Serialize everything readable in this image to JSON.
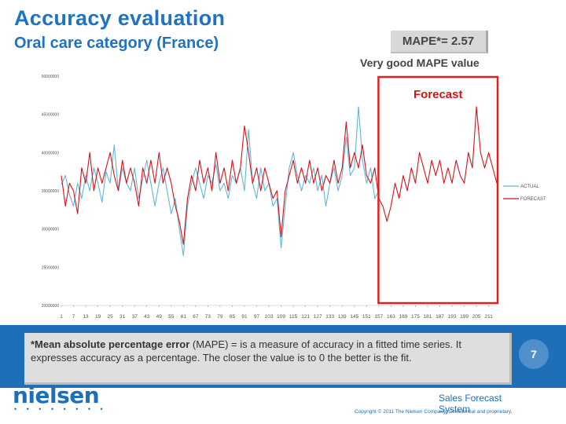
{
  "slide": {
    "title": "Accuracy evaluation",
    "subtitle": "Oral care category (France)",
    "mape_label": "MAPE*= 2.57",
    "mape_note": "Very good MAPE value",
    "forecast_label": "Forecast",
    "definition_bold": "*Mean absolute percentage error",
    "definition_text": " (MAPE) = is a measure of accuracy in a fitted time series. It expresses accuracy as a percentage. The closer the value is to 0 the better is the fit.",
    "page_number": "7",
    "logo_text": "nielsen",
    "logo_dots": "• • • • • • • •",
    "footer_system": "Sales Forecast System",
    "copyright": "Copyright © 2011 The Nielsen Company. Confidential and proprietary."
  },
  "colors": {
    "title": "#1f73c0",
    "actual": "#5fb8d6",
    "forecast": "#d3141a",
    "highlight": "#e02020",
    "band": "#1e6fb7"
  },
  "chart_data": {
    "type": "line",
    "x_start": 1,
    "x_end": 215,
    "x_ticks": [
      1,
      7,
      13,
      19,
      25,
      31,
      37,
      43,
      49,
      55,
      61,
      67,
      73,
      79,
      85,
      91,
      97,
      103,
      109,
      115,
      121,
      127,
      133,
      139,
      145,
      151,
      157,
      163,
      169,
      175,
      181,
      187,
      193,
      199,
      205,
      211
    ],
    "x_tick_labels": [
      "1",
      "7",
      "13",
      "19",
      "25",
      "31",
      "37",
      "43",
      "49",
      "55",
      "61",
      "67",
      "73",
      "79",
      "85",
      "91",
      "97",
      "103",
      "109",
      "115",
      "121",
      "127",
      "133",
      "139",
      "145",
      "151",
      "157",
      "163",
      "169",
      "175",
      "181",
      "187",
      "193",
      "199",
      "205",
      "211"
    ],
    "y_ticks": [
      20000000,
      25000000,
      30000000,
      35000000,
      40000000,
      45000000,
      50000000
    ],
    "y_tick_labels": [
      "20000000",
      "25000000",
      "30000000",
      "35000000",
      "40000000",
      "45000000",
      "50000000"
    ],
    "ylim": [
      20000000,
      50000000
    ],
    "forecast_start": 158,
    "legend_position": "right",
    "series": [
      {
        "name": "ACTUAL",
        "color": "#5fb8d6",
        "x_range": [
          1,
          157
        ],
        "waypoints": [
          [
            1,
            35.8
          ],
          [
            3,
            37
          ],
          [
            5,
            34.5
          ],
          [
            7,
            33
          ],
          [
            9,
            36
          ],
          [
            11,
            34
          ],
          [
            13,
            37
          ],
          [
            15,
            35
          ],
          [
            17,
            38
          ],
          [
            19,
            36
          ],
          [
            21,
            33.5
          ],
          [
            23,
            37.5
          ],
          [
            25,
            36
          ],
          [
            27,
            41
          ],
          [
            29,
            35
          ],
          [
            31,
            38
          ],
          [
            33,
            36
          ],
          [
            35,
            35
          ],
          [
            37,
            38
          ],
          [
            39,
            34
          ],
          [
            41,
            36.5
          ],
          [
            43,
            39
          ],
          [
            45,
            36
          ],
          [
            47,
            33
          ],
          [
            49,
            36
          ],
          [
            51,
            38
          ],
          [
            53,
            35
          ],
          [
            55,
            32
          ],
          [
            57,
            34
          ],
          [
            59,
            30
          ],
          [
            61,
            26.5
          ],
          [
            63,
            33
          ],
          [
            65,
            36
          ],
          [
            67,
            38
          ],
          [
            69,
            36
          ],
          [
            71,
            34
          ],
          [
            73,
            37
          ],
          [
            75,
            36
          ],
          [
            77,
            38.5
          ],
          [
            79,
            35
          ],
          [
            81,
            36
          ],
          [
            83,
            34
          ],
          [
            85,
            37
          ],
          [
            87,
            36
          ],
          [
            89,
            38
          ],
          [
            91,
            35
          ],
          [
            93,
            43
          ],
          [
            95,
            36
          ],
          [
            97,
            34
          ],
          [
            99,
            38
          ],
          [
            101,
            35
          ],
          [
            103,
            36
          ],
          [
            105,
            33
          ],
          [
            107,
            34
          ],
          [
            109,
            27.5
          ],
          [
            111,
            33
          ],
          [
            113,
            38
          ],
          [
            115,
            40
          ],
          [
            117,
            37
          ],
          [
            119,
            35
          ],
          [
            121,
            37
          ],
          [
            123,
            36
          ],
          [
            125,
            38
          ],
          [
            127,
            35
          ],
          [
            129,
            37
          ],
          [
            131,
            33
          ],
          [
            133,
            36
          ],
          [
            135,
            38
          ],
          [
            137,
            35
          ],
          [
            139,
            37
          ],
          [
            141,
            42
          ],
          [
            143,
            37
          ],
          [
            145,
            38
          ],
          [
            147,
            46
          ],
          [
            149,
            39
          ],
          [
            151,
            36
          ],
          [
            153,
            38
          ],
          [
            155,
            34
          ],
          [
            157,
            35
          ]
        ]
      },
      {
        "name": "FORECAST",
        "color": "#d3141a",
        "x_range": [
          1,
          215
        ],
        "waypoints": [
          [
            1,
            37
          ],
          [
            3,
            33
          ],
          [
            5,
            36
          ],
          [
            7,
            35
          ],
          [
            9,
            32
          ],
          [
            11,
            38
          ],
          [
            13,
            36
          ],
          [
            15,
            40
          ],
          [
            17,
            35
          ],
          [
            19,
            38
          ],
          [
            21,
            36
          ],
          [
            23,
            38
          ],
          [
            25,
            40
          ],
          [
            27,
            37
          ],
          [
            29,
            35
          ],
          [
            31,
            39
          ],
          [
            33,
            36
          ],
          [
            35,
            38
          ],
          [
            37,
            36
          ],
          [
            39,
            33
          ],
          [
            41,
            38
          ],
          [
            43,
            36
          ],
          [
            45,
            39
          ],
          [
            47,
            36
          ],
          [
            49,
            40
          ],
          [
            51,
            36
          ],
          [
            53,
            38
          ],
          [
            55,
            36
          ],
          [
            57,
            33
          ],
          [
            59,
            31
          ],
          [
            61,
            28
          ],
          [
            63,
            34
          ],
          [
            65,
            37
          ],
          [
            67,
            35
          ],
          [
            69,
            39
          ],
          [
            71,
            36
          ],
          [
            73,
            38
          ],
          [
            75,
            35
          ],
          [
            77,
            40
          ],
          [
            79,
            36
          ],
          [
            81,
            38
          ],
          [
            83,
            35
          ],
          [
            85,
            39
          ],
          [
            87,
            36
          ],
          [
            89,
            38
          ],
          [
            91,
            43.5
          ],
          [
            93,
            40
          ],
          [
            95,
            36
          ],
          [
            97,
            38
          ],
          [
            99,
            35
          ],
          [
            101,
            38
          ],
          [
            103,
            36
          ],
          [
            105,
            34
          ],
          [
            107,
            35
          ],
          [
            109,
            29
          ],
          [
            111,
            35
          ],
          [
            113,
            37
          ],
          [
            115,
            39
          ],
          [
            117,
            36
          ],
          [
            119,
            38
          ],
          [
            121,
            36
          ],
          [
            123,
            39
          ],
          [
            125,
            36
          ],
          [
            127,
            38
          ],
          [
            129,
            35
          ],
          [
            131,
            37
          ],
          [
            133,
            36
          ],
          [
            135,
            39
          ],
          [
            137,
            36
          ],
          [
            139,
            38
          ],
          [
            141,
            44
          ],
          [
            143,
            38
          ],
          [
            145,
            40
          ],
          [
            147,
            38
          ],
          [
            149,
            41
          ],
          [
            151,
            37
          ],
          [
            153,
            36
          ],
          [
            155,
            38
          ],
          [
            157,
            34
          ],
          [
            159,
            33
          ],
          [
            161,
            31
          ],
          [
            163,
            33
          ],
          [
            165,
            36
          ],
          [
            167,
            34
          ],
          [
            169,
            37
          ],
          [
            171,
            35
          ],
          [
            173,
            38
          ],
          [
            175,
            36
          ],
          [
            177,
            40
          ],
          [
            179,
            38
          ],
          [
            181,
            36
          ],
          [
            183,
            39
          ],
          [
            185,
            37
          ],
          [
            187,
            39
          ],
          [
            189,
            36
          ],
          [
            191,
            38
          ],
          [
            193,
            36
          ],
          [
            195,
            39
          ],
          [
            197,
            37
          ],
          [
            199,
            36
          ],
          [
            201,
            40
          ],
          [
            203,
            38
          ],
          [
            205,
            46
          ],
          [
            207,
            40
          ],
          [
            209,
            38
          ],
          [
            211,
            40
          ],
          [
            213,
            38
          ],
          [
            215,
            36
          ]
        ]
      }
    ]
  }
}
